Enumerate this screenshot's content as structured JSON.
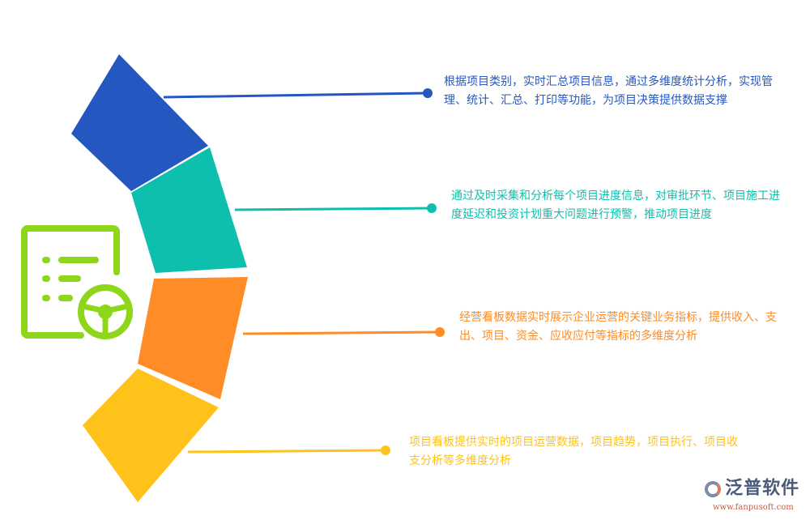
{
  "colors": {
    "blue": "#2557c0",
    "teal": "#0ebfad",
    "orange": "#ff8c26",
    "yellow": "#ffc21a",
    "icon": "#8ed619"
  },
  "icon": "dashboard-document-steering-wheel-icon",
  "items": [
    {
      "text": "根据项目类别，实时汇总项目信息，通过多维度统计分析，实现管理、统计、汇总、打印等功能，为项目决策提供数据支撑"
    },
    {
      "text": "通过及时采集和分析每个项目进度信息，对审批环节、项目施工进度延迟和投资计划重大问题进行预警，推动项目进度"
    },
    {
      "text": "经营看板数据实时展示企业运营的关键业务指标，提供收入、支出、项目、资金、应收应付等指标的多维度分析"
    },
    {
      "text": "项目看板提供实时的项目运营数据，项目趋势，项目执行、项目收支分析等多维度分析"
    }
  ],
  "logo": {
    "name": "泛普软件",
    "url": "www.fanpusoft.com"
  }
}
